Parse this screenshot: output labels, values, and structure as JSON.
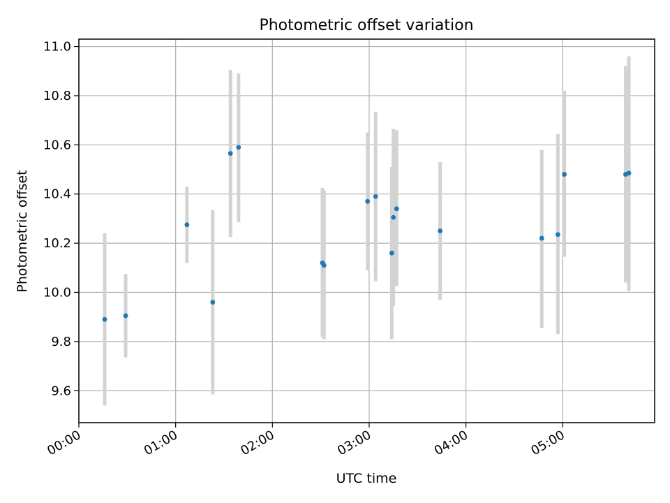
{
  "chart_data": {
    "type": "scatter",
    "title": "Photometric offset variation",
    "xlabel": "UTC time",
    "ylabel": "Photometric offset",
    "x_unit": "UTC time (HH:MM)",
    "xlim": [
      "00:00",
      "05:57"
    ],
    "ylim": [
      9.47,
      11.03
    ],
    "x_ticks": [
      "00:00",
      "01:00",
      "02:00",
      "03:00",
      "04:00",
      "05:00"
    ],
    "y_ticks": [
      "9.6",
      "9.8",
      "10.0",
      "10.2",
      "10.4",
      "10.6",
      "10.8",
      "11.0"
    ],
    "grid": true,
    "colors": {
      "point": "#1f77b4",
      "errorbar": "#d3d3d3",
      "grid": "#b0b0b0",
      "axis": "#000000"
    },
    "points": [
      {
        "x": "00:16",
        "y": 9.89,
        "ylow": 9.54,
        "yhigh": 10.24
      },
      {
        "x": "00:29",
        "y": 9.905,
        "ylow": 9.735,
        "yhigh": 10.075
      },
      {
        "x": "01:07",
        "y": 10.275,
        "ylow": 10.12,
        "yhigh": 10.43
      },
      {
        "x": "01:23",
        "y": 9.96,
        "ylow": 9.585,
        "yhigh": 10.335
      },
      {
        "x": "01:34",
        "y": 10.565,
        "ylow": 10.225,
        "yhigh": 10.905
      },
      {
        "x": "01:39",
        "y": 10.59,
        "ylow": 10.285,
        "yhigh": 10.89
      },
      {
        "x": "02:31",
        "y": 10.12,
        "ylow": 9.82,
        "yhigh": 10.425
      },
      {
        "x": "02:32",
        "y": 10.11,
        "ylow": 9.81,
        "yhigh": 10.415
      },
      {
        "x": "02:59",
        "y": 10.37,
        "ylow": 10.09,
        "yhigh": 10.65
      },
      {
        "x": "03:04",
        "y": 10.39,
        "ylow": 10.045,
        "yhigh": 10.735
      },
      {
        "x": "03:14",
        "y": 10.16,
        "ylow": 9.81,
        "yhigh": 10.51
      },
      {
        "x": "03:15",
        "y": 10.305,
        "ylow": 9.945,
        "yhigh": 10.665
      },
      {
        "x": "03:17",
        "y": 10.34,
        "ylow": 10.025,
        "yhigh": 10.66
      },
      {
        "x": "03:44",
        "y": 10.25,
        "ylow": 9.97,
        "yhigh": 10.53
      },
      {
        "x": "04:47",
        "y": 10.22,
        "ylow": 9.855,
        "yhigh": 10.58
      },
      {
        "x": "04:57",
        "y": 10.235,
        "ylow": 9.83,
        "yhigh": 10.645
      },
      {
        "x": "05:01",
        "y": 10.48,
        "ylow": 10.145,
        "yhigh": 10.82
      },
      {
        "x": "05:39",
        "y": 10.48,
        "ylow": 10.04,
        "yhigh": 10.92
      },
      {
        "x": "05:41",
        "y": 10.485,
        "ylow": 10.005,
        "yhigh": 10.96
      }
    ]
  }
}
